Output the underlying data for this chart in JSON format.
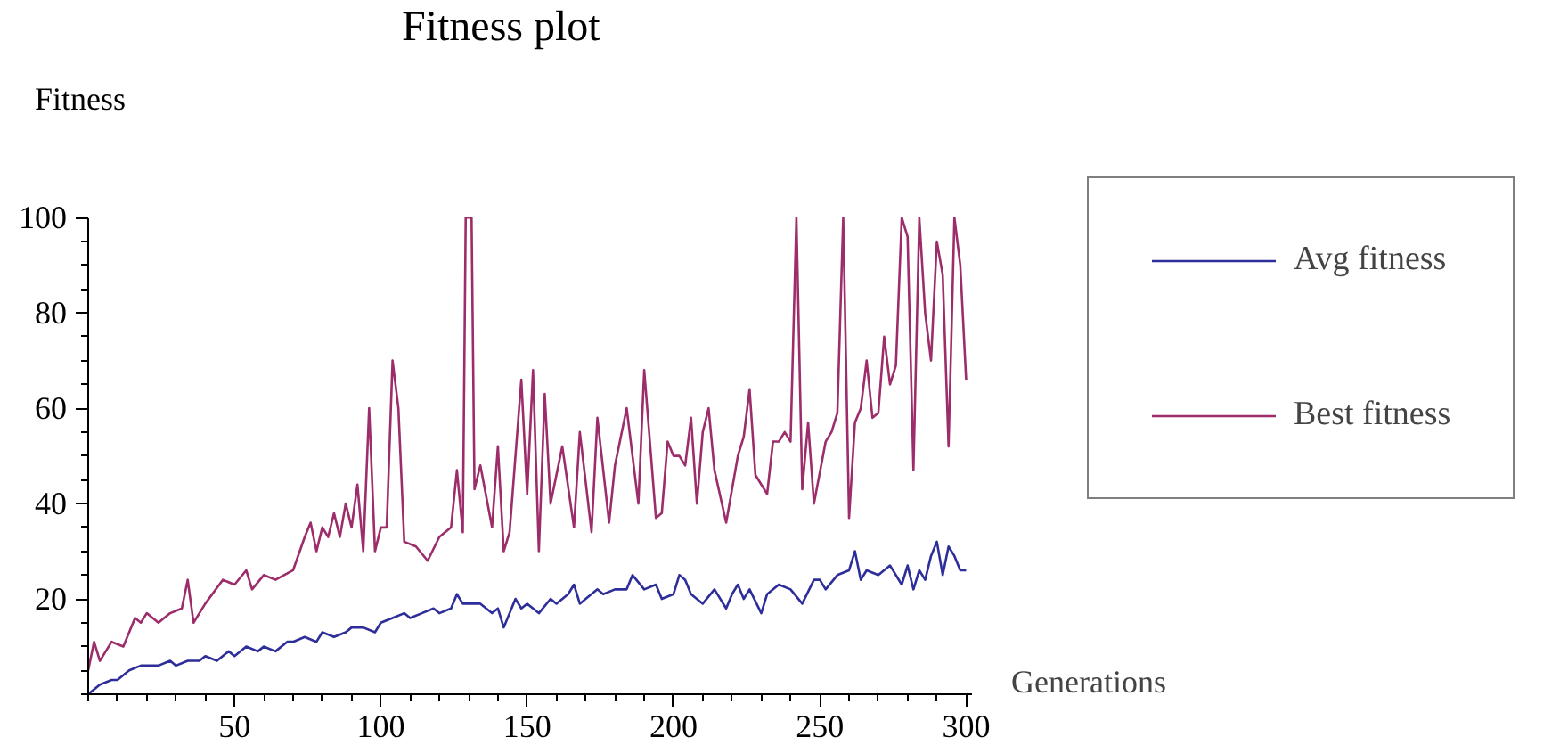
{
  "chart_data": {
    "type": "line",
    "title": "Fitness plot",
    "xlabel": "Generations",
    "ylabel": "Fitness",
    "xlim": [
      0,
      302
    ],
    "ylim": [
      0,
      100
    ],
    "xticks": [
      50,
      100,
      150,
      200,
      250,
      300
    ],
    "yticks": [
      20,
      40,
      60,
      80,
      100
    ],
    "grid": false,
    "legend": "right",
    "line_style": "solid",
    "marker": "none",
    "series": [
      {
        "name": "Avg fitness",
        "color": "#2e2e9a",
        "x": [
          0,
          4,
          8,
          10,
          14,
          18,
          20,
          24,
          28,
          30,
          34,
          38,
          40,
          44,
          48,
          50,
          54,
          58,
          60,
          64,
          68,
          70,
          74,
          78,
          80,
          84,
          88,
          90,
          94,
          98,
          100,
          104,
          108,
          110,
          114,
          118,
          120,
          124,
          126,
          128,
          130,
          134,
          138,
          140,
          142,
          146,
          148,
          150,
          154,
          158,
          160,
          164,
          166,
          168,
          170,
          174,
          176,
          180,
          184,
          186,
          190,
          194,
          196,
          200,
          202,
          204,
          206,
          210,
          214,
          218,
          220,
          222,
          224,
          226,
          230,
          232,
          236,
          240,
          244,
          248,
          250,
          252,
          256,
          260,
          262,
          264,
          266,
          270,
          274,
          278,
          280,
          282,
          284,
          286,
          288,
          290,
          292,
          294,
          296,
          298,
          300
        ],
        "values": [
          0,
          2,
          3,
          3,
          5,
          6,
          6,
          6,
          7,
          6,
          7,
          7,
          8,
          7,
          9,
          8,
          10,
          9,
          10,
          9,
          11,
          11,
          12,
          11,
          13,
          12,
          13,
          14,
          14,
          13,
          15,
          16,
          17,
          16,
          17,
          18,
          17,
          18,
          21,
          19,
          19,
          19,
          17,
          18,
          14,
          20,
          18,
          19,
          17,
          20,
          19,
          21,
          23,
          19,
          20,
          22,
          21,
          22,
          22,
          25,
          22,
          23,
          20,
          21,
          25,
          24,
          21,
          19,
          22,
          18,
          21,
          23,
          20,
          22,
          17,
          21,
          23,
          22,
          19,
          24,
          24,
          22,
          25,
          26,
          30,
          24,
          26,
          25,
          27,
          23,
          27,
          22,
          26,
          24,
          29,
          32,
          25,
          31,
          29,
          26,
          26
        ]
      },
      {
        "name": "Best fitness",
        "color": "#9c2d6a",
        "x": [
          0,
          2,
          4,
          8,
          12,
          16,
          18,
          20,
          24,
          28,
          32,
          34,
          36,
          40,
          46,
          50,
          54,
          56,
          60,
          64,
          70,
          74,
          76,
          78,
          80,
          82,
          84,
          86,
          88,
          90,
          92,
          94,
          96,
          98,
          100,
          102,
          104,
          106,
          108,
          112,
          116,
          120,
          124,
          126,
          128,
          129,
          131,
          132,
          134,
          138,
          140,
          142,
          144,
          148,
          150,
          152,
          154,
          156,
          158,
          162,
          166,
          168,
          172,
          174,
          178,
          180,
          184,
          188,
          190,
          194,
          196,
          198,
          200,
          202,
          204,
          206,
          208,
          210,
          212,
          214,
          218,
          222,
          224,
          226,
          228,
          232,
          234,
          236,
          238,
          240,
          242,
          244,
          246,
          248,
          252,
          254,
          256,
          258,
          260,
          262,
          264,
          266,
          268,
          270,
          272,
          274,
          276,
          278,
          280,
          282,
          284,
          286,
          288,
          290,
          292,
          294,
          296,
          298,
          300
        ],
        "values": [
          5,
          11,
          7,
          11,
          10,
          16,
          15,
          17,
          15,
          17,
          18,
          24,
          15,
          19,
          24,
          23,
          26,
          22,
          25,
          24,
          26,
          33,
          36,
          30,
          35,
          33,
          38,
          33,
          40,
          35,
          44,
          30,
          60,
          30,
          35,
          35,
          70,
          60,
          32,
          31,
          28,
          33,
          35,
          47,
          34,
          100,
          100,
          43,
          48,
          35,
          52,
          30,
          34,
          66,
          42,
          68,
          30,
          63,
          40,
          52,
          35,
          55,
          34,
          58,
          36,
          48,
          60,
          40,
          68,
          37,
          38,
          53,
          50,
          50,
          48,
          58,
          40,
          55,
          60,
          47,
          36,
          50,
          54,
          64,
          46,
          42,
          53,
          53,
          55,
          53,
          100,
          43,
          57,
          40,
          53,
          55,
          59,
          100,
          37,
          57,
          60,
          70,
          58,
          59,
          75,
          65,
          69,
          100,
          96,
          47,
          100,
          80,
          70,
          95,
          88,
          52,
          100,
          90,
          66
        ]
      }
    ]
  }
}
